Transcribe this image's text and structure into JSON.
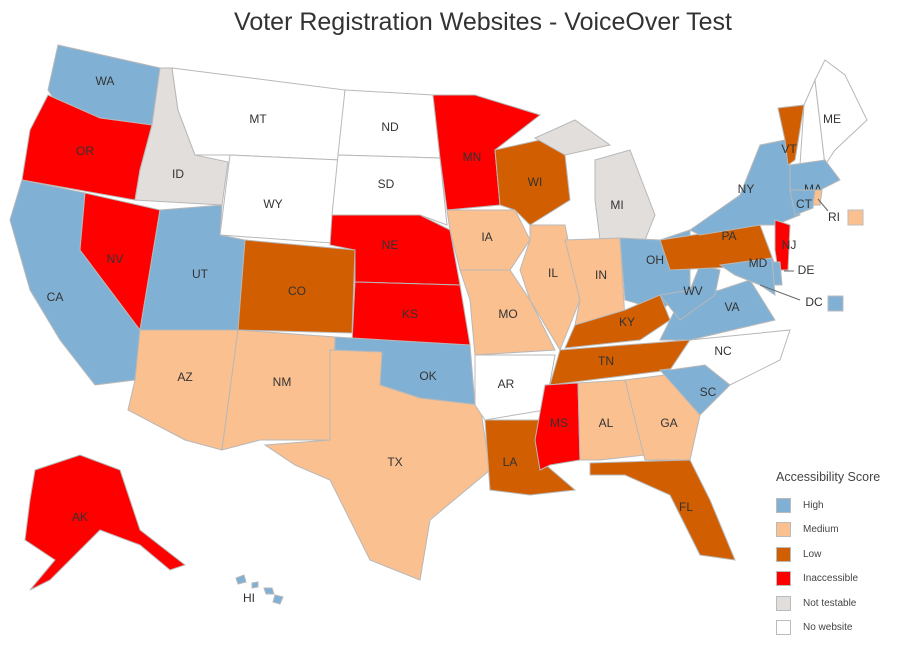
{
  "title": "Voter Registration Websites - VoiceOver Test",
  "legend": {
    "title": "Accessibility Score",
    "items": [
      {
        "key": "high",
        "label": "High",
        "color": "#80b1d5"
      },
      {
        "key": "medium",
        "label": "Medium",
        "color": "#fbc08f"
      },
      {
        "key": "low",
        "label": "Low",
        "color": "#d15e00"
      },
      {
        "key": "inaccessible",
        "label": "Inaccessible",
        "color": "#ff0000"
      },
      {
        "key": "not_testable",
        "label": "Not testable",
        "color": "#e2dedb"
      },
      {
        "key": "none",
        "label": "No website",
        "color": "#ffffff"
      }
    ]
  },
  "states": {
    "WA": "high",
    "OR": "inaccessible",
    "CA": "high",
    "NV": "inaccessible",
    "ID": "not_testable",
    "MT": "none",
    "WY": "none",
    "UT": "high",
    "AZ": "medium",
    "CO": "low",
    "NM": "medium",
    "ND": "none",
    "SD": "none",
    "NE": "inaccessible",
    "KS": "inaccessible",
    "OK": "high",
    "TX": "medium",
    "MN": "inaccessible",
    "IA": "medium",
    "MO": "medium",
    "AR": "none",
    "LA": "low",
    "WI": "low",
    "IL": "medium",
    "MI": "not_testable",
    "IN": "medium",
    "OH": "high",
    "KY": "low",
    "TN": "low",
    "MS": "inaccessible",
    "AL": "medium",
    "GA": "medium",
    "FL": "low",
    "SC": "high",
    "NC": "none",
    "VA": "high",
    "WV": "high",
    "PA": "low",
    "NY": "high",
    "VT": "low",
    "NH": "none",
    "ME": "none",
    "MA": "high",
    "CT": "high",
    "RI": "medium",
    "NJ": "inaccessible",
    "DE": "high",
    "MD": "high",
    "DC": "high",
    "AK": "inaccessible",
    "HI": "high"
  }
}
